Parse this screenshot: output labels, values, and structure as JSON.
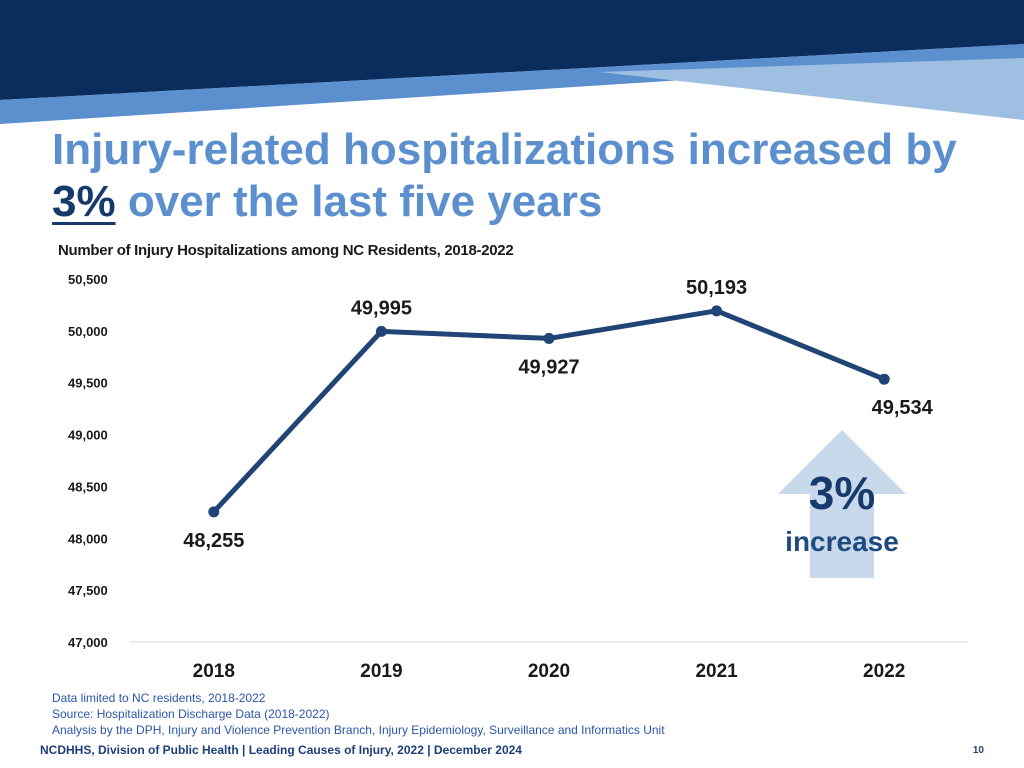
{
  "colors": {
    "banner_dark": "#0b2d5e",
    "banner_mid": "#5b8fce",
    "banner_light": "#9fbfe2",
    "title_light": "#5b8fce",
    "title_dark": "#163a6c",
    "line": "#1f4475",
    "arrow": "#c9d9ec",
    "notes": "#2a56a8"
  },
  "slide": {
    "title_part1": "Injury-related hospitalizations increased by",
    "title_highlight": "3%",
    "title_part2": "over the last five years",
    "chart_title": "Number of Injury Hospitalizations among NC Residents, 2018-2022"
  },
  "callout": {
    "value": "3%",
    "label": "increase"
  },
  "notes": {
    "line1": "Data limited to NC residents, 2018-2022",
    "line2": "Source: Hospitalization Discharge Data (2018-2022)",
    "line3": "Analysis by the DPH, Injury and Violence Prevention Branch, Injury Epidemiology, Surveillance and Informatics Unit"
  },
  "footer": {
    "text": "NCDHHS, Division of Public Health | Leading Causes of Injury, 2022 | December 2024",
    "page_number": "10"
  },
  "chart_data": {
    "type": "line",
    "title": "Number of Injury Hospitalizations among NC Residents, 2018-2022",
    "xlabel": "",
    "ylabel": "",
    "categories": [
      "2018",
      "2019",
      "2020",
      "2021",
      "2022"
    ],
    "values": [
      48255,
      49995,
      49927,
      50193,
      49534
    ],
    "value_labels": [
      "48,255",
      "49,995",
      "49,927",
      "50,193",
      "49,534"
    ],
    "label_positions": [
      "below",
      "above",
      "below",
      "above",
      "below"
    ],
    "ylim": [
      47000,
      50500
    ],
    "yticks": [
      47000,
      47500,
      48000,
      48500,
      49000,
      49500,
      50000,
      50500
    ],
    "ytick_labels": [
      "47,000",
      "47,500",
      "48,000",
      "48,500",
      "49,000",
      "49,500",
      "50,000",
      "50,500"
    ],
    "grid": false
  }
}
